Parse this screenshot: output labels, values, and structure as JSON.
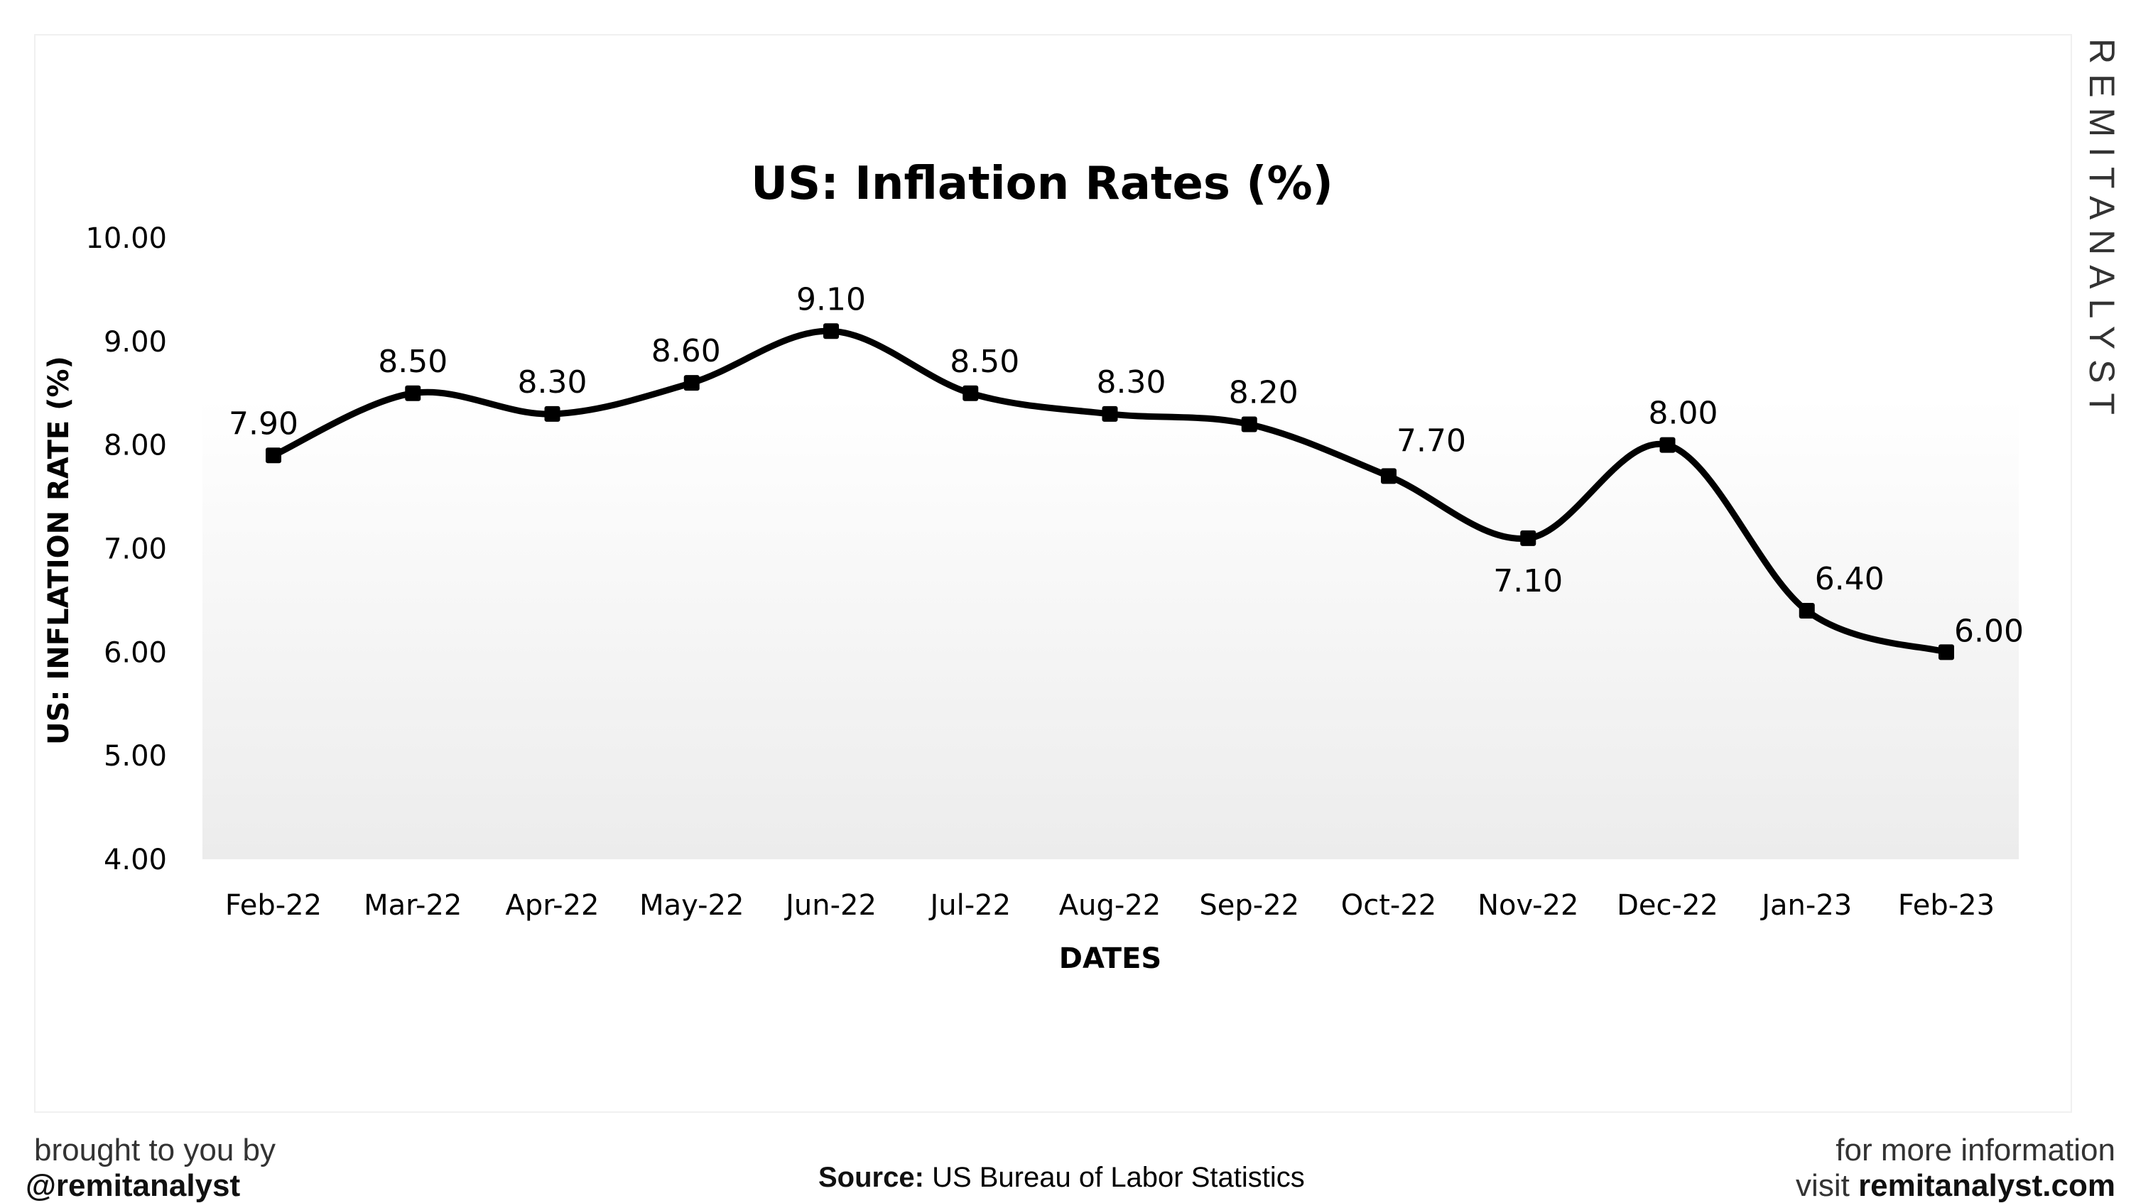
{
  "brand": "REMITANALYST",
  "chart_data": {
    "type": "line",
    "title": "US: Inflation Rates (%)",
    "xlabel": "DATES",
    "ylabel": "US: INFLATION RATE (%)",
    "categories": [
      "Feb-22",
      "Mar-22",
      "Apr-22",
      "May-22",
      "Jun-22",
      "Jul-22",
      "Aug-22",
      "Sep-22",
      "Oct-22",
      "Nov-22",
      "Dec-22",
      "Jan-23",
      "Feb-23"
    ],
    "values": [
      7.9,
      8.5,
      8.3,
      8.6,
      9.1,
      8.5,
      8.3,
      8.2,
      7.7,
      7.1,
      8.0,
      6.4,
      6.0
    ],
    "data_labels": [
      "7.90",
      "8.50",
      "8.30",
      "8.60",
      "9.10",
      "8.50",
      "8.30",
      "8.20",
      "7.70",
      "7.10",
      "8.00",
      "6.40",
      "6.00"
    ],
    "ylim": [
      4,
      10
    ],
    "yticks": [
      "4.00",
      "5.00",
      "6.00",
      "7.00",
      "8.00",
      "9.00",
      "10.00"
    ],
    "smooth": true,
    "grid": false,
    "line_color": "#000000",
    "fill": "gradient white to light gray under plot"
  },
  "footer": {
    "left_line1": "brought to you by",
    "left_line2": "@remitanalyst",
    "source_label": "Source:",
    "source_text": "US Bureau of Labor Statistics",
    "right_line1": "for more information",
    "right_prefix": "visit",
    "right_link": "remitanalyst.com"
  }
}
